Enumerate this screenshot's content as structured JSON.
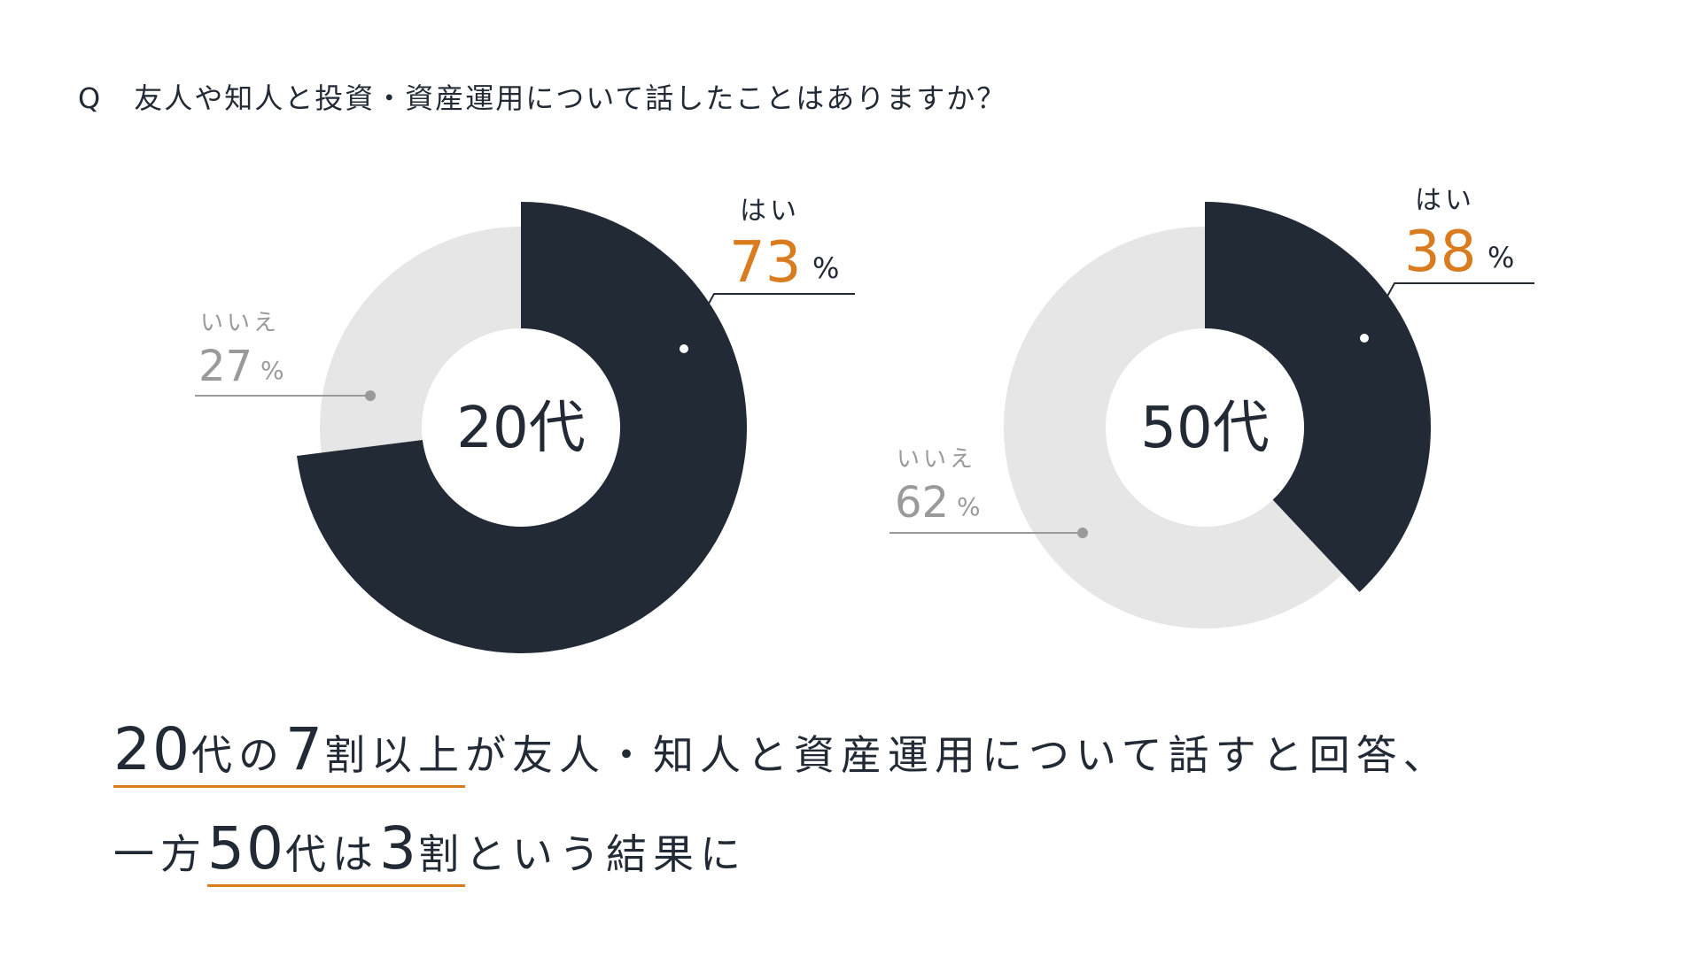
{
  "question": {
    "mark": "Q",
    "text": "友人や知人と投資・資産運用について話したことはありますか？"
  },
  "colors": {
    "yes": "#222b35",
    "no": "#e6e6e6",
    "accent": "#d97b1f",
    "muted": "#9a9a9a"
  },
  "chart_data": [
    {
      "type": "pie",
      "center_label": "20代",
      "slices": [
        {
          "label": "はい",
          "value": 73,
          "unit": "%"
        },
        {
          "label": "いいえ",
          "value": 27,
          "unit": "%"
        }
      ]
    },
    {
      "type": "pie",
      "center_label": "50代",
      "slices": [
        {
          "label": "はい",
          "value": 38,
          "unit": "%"
        },
        {
          "label": "いいえ",
          "value": 62,
          "unit": "%"
        }
      ]
    }
  ],
  "summary": {
    "line1": {
      "highlight_num": "20",
      "highlight_a": "代の",
      "highlight_num2": "7",
      "highlight_b": "割以上",
      "rest": "が友人・知人と資産運用について話すと回答、"
    },
    "line2": {
      "prefix": "一方",
      "highlight_num": "50",
      "highlight_a": "代は",
      "highlight_num2": "3",
      "highlight_b": "割",
      "rest": "という結果に"
    }
  }
}
